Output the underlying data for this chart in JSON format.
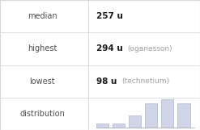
{
  "rows": [
    {
      "label": "median",
      "value": "257 u",
      "note": ""
    },
    {
      "label": "highest",
      "value": "294 u",
      "note": "(oganesson)"
    },
    {
      "label": "lowest",
      "value": "98 u",
      "note": "(technetium)"
    },
    {
      "label": "distribution",
      "value": "",
      "note": ""
    }
  ],
  "hist_bars": [
    1,
    1,
    3,
    6,
    7,
    6
  ],
  "hist_bar_color": "#d0d4e8",
  "hist_bar_edge_color": "#b0b4c8",
  "background_color": "#ffffff",
  "label_color": "#505050",
  "value_color": "#1a1a1a",
  "note_color": "#a0a0a0",
  "line_color": "#d8d8d8",
  "label_fontsize": 7.0,
  "value_fontsize": 7.5,
  "note_fontsize": 6.5,
  "col_split": 0.44
}
